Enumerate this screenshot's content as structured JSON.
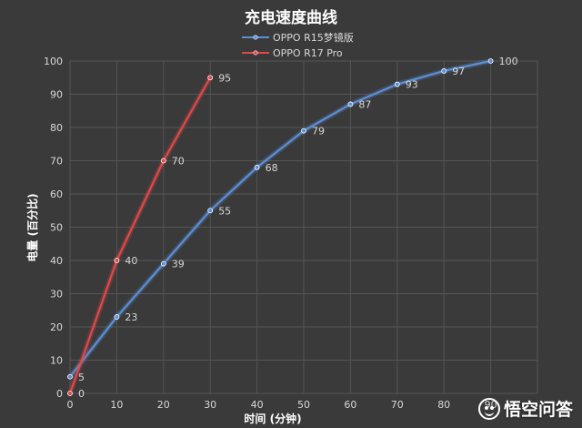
{
  "chart_data": {
    "type": "line",
    "title": "充电速度曲线",
    "xlabel": "时间 (分钟)",
    "ylabel": "电量 (百分比)",
    "xlim": [
      0,
      100
    ],
    "ylim": [
      0,
      100
    ],
    "x_ticks": [
      "0",
      "10",
      "20",
      "30",
      "40",
      "50",
      "60",
      "70",
      "80",
      "90"
    ],
    "y_ticks": [
      "0",
      "10",
      "20",
      "30",
      "40",
      "50",
      "60",
      "70",
      "80",
      "90",
      "100"
    ],
    "grid": true,
    "legend_position": "top-center",
    "series": [
      {
        "name": "OPPO R15梦镜版",
        "color": "#5b8fd6",
        "x": [
          0,
          10,
          20,
          30,
          40,
          50,
          60,
          70,
          80,
          90
        ],
        "values": [
          5,
          23,
          39,
          55,
          68,
          79,
          87,
          93,
          97,
          100
        ]
      },
      {
        "name": "OPPO R17 Pro",
        "color": "#e04848",
        "x": [
          0,
          10,
          20,
          30
        ],
        "values": [
          0,
          40,
          70,
          95
        ]
      }
    ]
  },
  "watermark": {
    "icon": "smiley-logo-icon",
    "text": "悟空问答"
  }
}
